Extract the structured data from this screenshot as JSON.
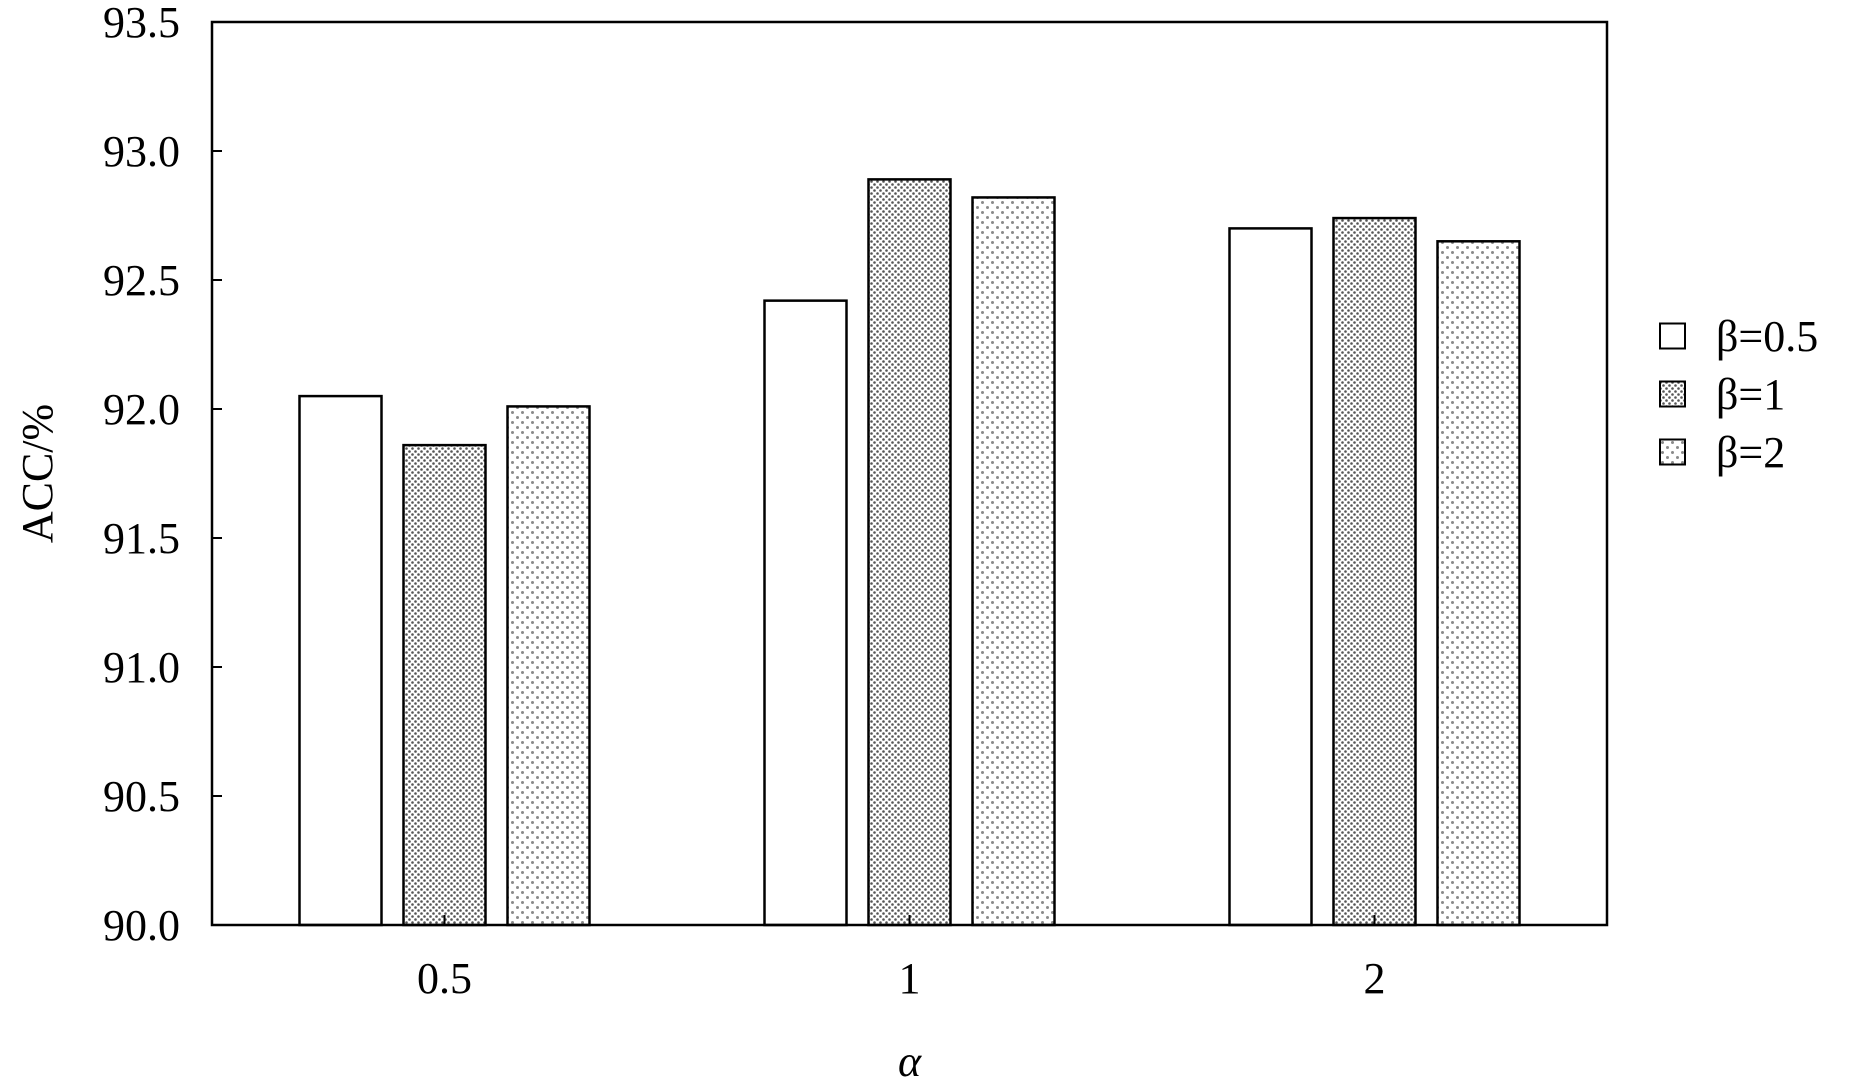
{
  "chart_data": {
    "type": "bar",
    "title": "",
    "xlabel": "α",
    "ylabel": "ACC/%",
    "categories": [
      "0.5",
      "1",
      "2"
    ],
    "series": [
      {
        "name": "β=0.5",
        "values": [
          92.05,
          92.42,
          92.7
        ],
        "pattern": "none"
      },
      {
        "name": "β=1",
        "values": [
          91.86,
          92.89,
          92.74
        ],
        "pattern": "dense-dots"
      },
      {
        "name": "β=2",
        "values": [
          92.01,
          92.82,
          92.65
        ],
        "pattern": "sparse-dots"
      }
    ],
    "ylim": [
      90.0,
      93.5
    ],
    "yticks": [
      "90.0",
      "90.5",
      "91.0",
      "91.5",
      "92.0",
      "92.5",
      "93.0",
      "93.5"
    ],
    "grid": false,
    "legend_position": "right",
    "colors": {
      "bar_stroke": "#000000",
      "dense_dot": "#555555",
      "sparse_dot": "#8a8a8a",
      "background": "#ffffff"
    }
  }
}
